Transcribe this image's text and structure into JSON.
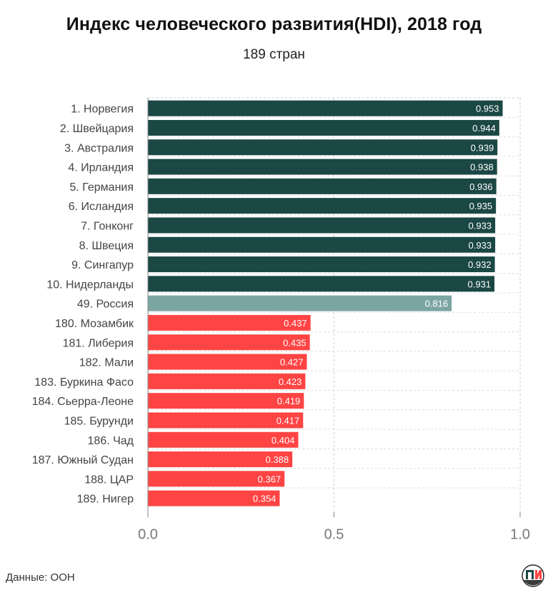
{
  "header": {
    "title": "Индекс человеческого развития(HDI), 2018 год",
    "subtitle": "189 стран"
  },
  "footer": {
    "source": "Данные: ООН"
  },
  "logo": {
    "icon": "pi-logo-icon",
    "text": "ПИ"
  },
  "colors": {
    "top": "#1b4744",
    "russia": "#7ba5a3",
    "bottom": "#ff4444",
    "grid": "#cccccc"
  },
  "chart_data": {
    "type": "bar",
    "orientation": "horizontal",
    "title": "Индекс человеческого развития(HDI), 2018 год",
    "subtitle": "189 стран",
    "xlim": [
      0,
      1.0
    ],
    "x_ticks": [
      "0.0",
      "0.5",
      "1.0"
    ],
    "grid": true,
    "categories": [
      "1. Норвегия",
      "2. Швейцария",
      "3. Австралия",
      "4. Ирландия",
      "5. Германия",
      "6. Исландия",
      "7. Гонконг",
      "8. Швеция",
      "9. Сингапур",
      "10. Нидерланды",
      "49. Россия",
      "180. Мозамбик",
      "181. Либерия",
      "182. Мали",
      "183. Буркина Фасо",
      "184. Сьерра-Леоне",
      "185. Бурунди",
      "186. Чад",
      "187. Южный Судан",
      "188. ЦАР",
      "189. Нигер"
    ],
    "values": [
      0.953,
      0.944,
      0.939,
      0.938,
      0.936,
      0.935,
      0.933,
      0.933,
      0.932,
      0.931,
      0.816,
      0.437,
      0.435,
      0.427,
      0.423,
      0.419,
      0.417,
      0.404,
      0.388,
      0.367,
      0.354
    ],
    "value_labels": [
      "0.953",
      "0.944",
      "0.939",
      "0.938",
      "0.936",
      "0.935",
      "0.933",
      "0.933",
      "0.932",
      "0.931",
      "0.816",
      "0.437",
      "0.435",
      "0.427",
      "0.423",
      "0.419",
      "0.417",
      "0.404",
      "0.388",
      "0.367",
      "0.354"
    ],
    "groups": [
      "top",
      "top",
      "top",
      "top",
      "top",
      "top",
      "top",
      "top",
      "top",
      "top",
      "russia",
      "bottom",
      "bottom",
      "bottom",
      "bottom",
      "bottom",
      "bottom",
      "bottom",
      "bottom",
      "bottom",
      "bottom"
    ]
  }
}
